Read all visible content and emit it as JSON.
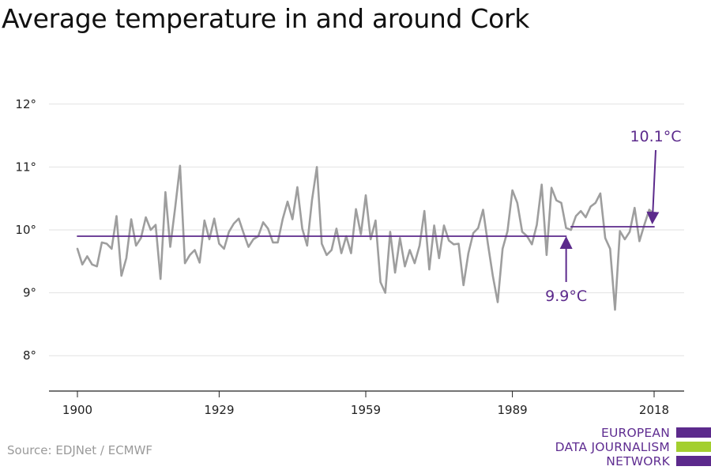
{
  "chart_data": {
    "type": "line",
    "title": "Average temperature in and around Cork",
    "x_ticks": [
      "1900",
      "1929",
      "1959",
      "1989",
      "2018"
    ],
    "y_ticks": [
      "8°",
      "9°",
      "10°",
      "11°",
      "12°"
    ],
    "xlim": [
      1900,
      2018
    ],
    "ylim": [
      7.5,
      12.5
    ],
    "grid": true,
    "series": [
      {
        "color": "#9e9e9e",
        "x": [
          1900,
          1901,
          1902,
          1903,
          1904,
          1905,
          1906,
          1907,
          1908,
          1909,
          1910,
          1911,
          1912,
          1913,
          1914,
          1915,
          1916,
          1917,
          1918,
          1919,
          1920,
          1921,
          1922,
          1923,
          1924,
          1925,
          1926,
          1927,
          1928,
          1929,
          1930,
          1931,
          1932,
          1933,
          1934,
          1935,
          1936,
          1937,
          1938,
          1939,
          1940,
          1941,
          1942,
          1943,
          1944,
          1945,
          1946,
          1947,
          1948,
          1949,
          1950,
          1951,
          1952,
          1953,
          1954,
          1955,
          1956,
          1957,
          1958,
          1959,
          1960,
          1961,
          1962,
          1963,
          1964,
          1965,
          1966,
          1967,
          1968,
          1969,
          1970,
          1971,
          1972,
          1973,
          1974,
          1975,
          1976,
          1977,
          1978,
          1979,
          1980,
          1981,
          1982,
          1983,
          1984,
          1985,
          1986,
          1987,
          1988,
          1989,
          1990,
          1991,
          1992,
          1993,
          1994,
          1995,
          1996,
          1997,
          1998,
          1999,
          2000,
          2001,
          2002,
          2003,
          2004,
          2005,
          2006,
          2007,
          2008,
          2009,
          2010,
          2011,
          2012,
          2013,
          2014,
          2015,
          2016,
          2017,
          2018
        ],
        "values": [
          9.7,
          9.45,
          9.58,
          9.45,
          9.42,
          9.8,
          9.78,
          9.7,
          10.22,
          9.27,
          9.55,
          10.17,
          9.75,
          9.87,
          10.2,
          10.0,
          10.08,
          9.22,
          10.6,
          9.73,
          10.35,
          11.02,
          9.47,
          9.6,
          9.68,
          9.48,
          10.15,
          9.85,
          10.18,
          9.78,
          9.7,
          9.97,
          10.1,
          10.18,
          9.95,
          9.73,
          9.85,
          9.9,
          10.12,
          10.02,
          9.8,
          9.8,
          10.17,
          10.45,
          10.17,
          10.68,
          10.02,
          9.75,
          10.47,
          11.0,
          9.78,
          9.6,
          9.68,
          10.02,
          9.63,
          9.9,
          9.63,
          10.33,
          9.93,
          10.55,
          9.85,
          10.15,
          9.17,
          9.0,
          9.97,
          9.32,
          9.87,
          9.42,
          9.68,
          9.47,
          9.75,
          10.3,
          9.37,
          10.07,
          9.55,
          10.07,
          9.83,
          9.77,
          9.78,
          9.12,
          9.63,
          9.95,
          10.03,
          10.32,
          9.77,
          9.27,
          8.85,
          9.7,
          9.98,
          10.63,
          10.43,
          9.97,
          9.9,
          9.77,
          10.08,
          10.72,
          9.6,
          10.67,
          10.47,
          10.43,
          10.03,
          10.0,
          10.22,
          10.3,
          10.2,
          10.37,
          10.43,
          10.58,
          9.87,
          9.7,
          8.73,
          9.98,
          9.85,
          9.97,
          10.35,
          9.82,
          10.08,
          10.32,
          10.25
        ]
      },
      {
        "color": "#5c2a8c",
        "x": [
          1900,
          2000
        ],
        "values": [
          9.9,
          9.9
        ]
      },
      {
        "color": "#5c2a8c",
        "x": [
          2001,
          2018
        ],
        "values": [
          10.05,
          10.05
        ]
      }
    ],
    "annotations": [
      {
        "text": "9.9°C",
        "color": "#5c2a8c"
      },
      {
        "text": "10.1°C",
        "color": "#5c2a8c"
      }
    ]
  },
  "source": "Source: EDJNet / ECMWF",
  "logo": {
    "lines": [
      "EUROPEAN",
      "DATA JOURNALISM",
      "NETWORK"
    ],
    "colors": [
      "#5c2a8c",
      "#a3cf2e",
      "#5c2a8c"
    ]
  }
}
